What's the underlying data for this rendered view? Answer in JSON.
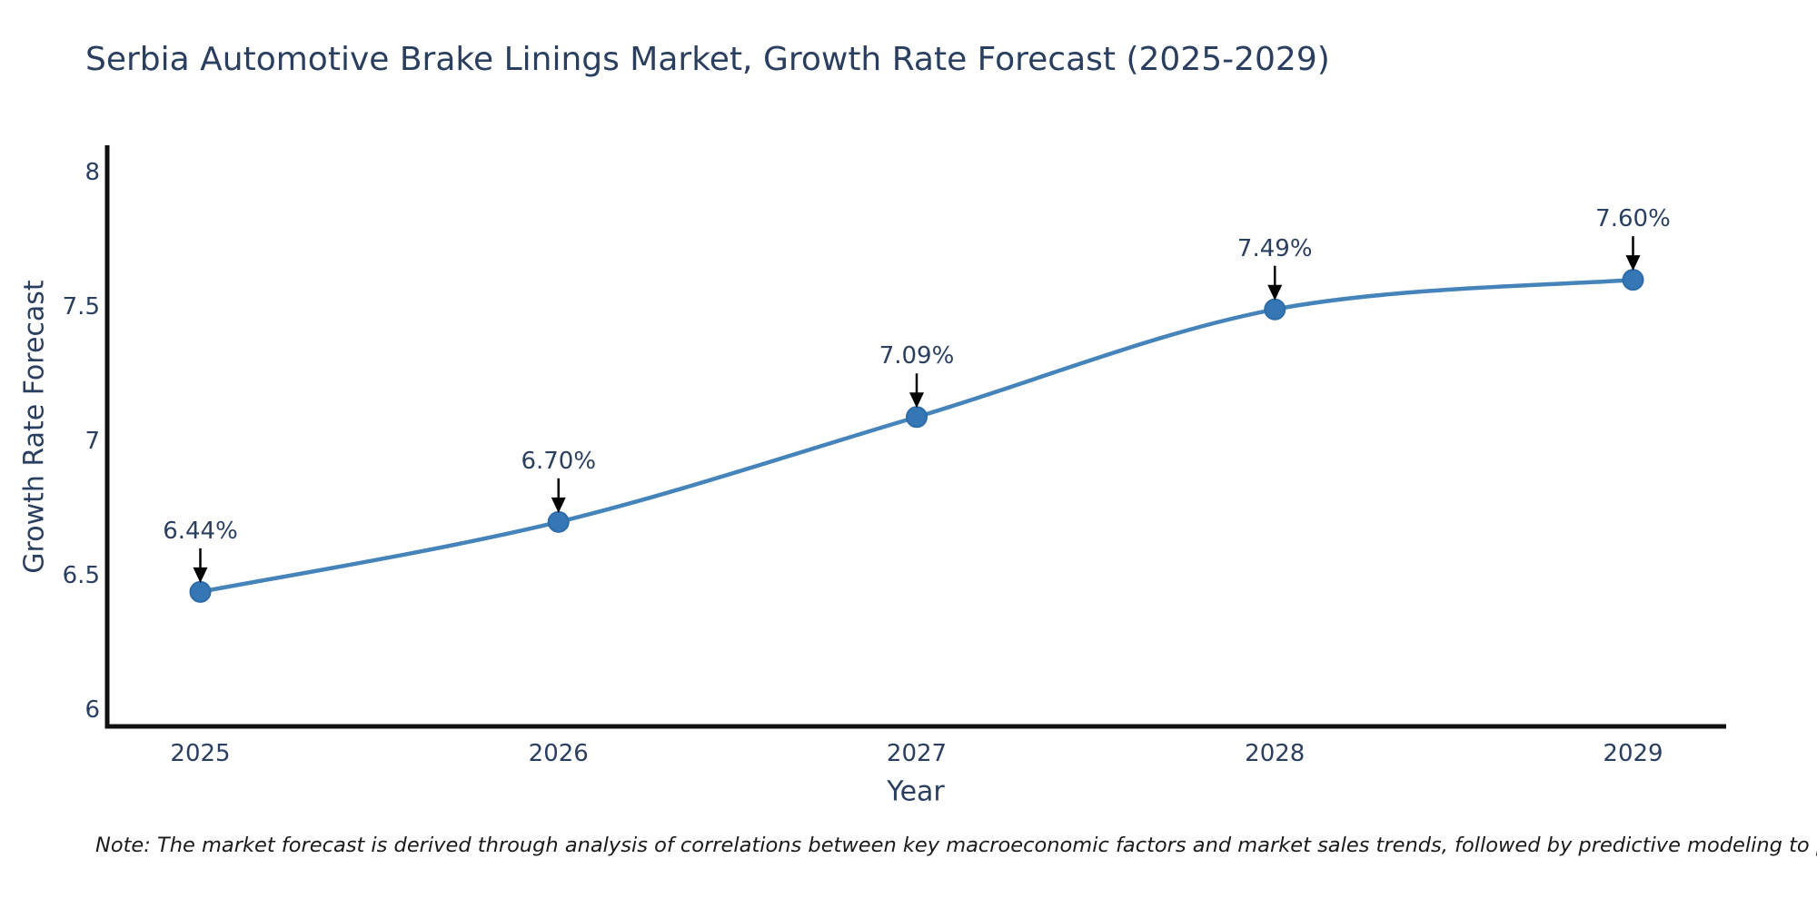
{
  "title": "Serbia Automotive Brake Linings Market, Growth Rate Forecast (2025-2029)",
  "note": "Note: The market forecast is derived through analysis of correlations between key macroeconomic factors and market sales trends, followed by predictive modeling to project future sales",
  "colors": {
    "line": "#4583bb",
    "marker_fill": "#3577b4",
    "marker_edge": "#2d6ca8",
    "axis_line": "#101010",
    "text": "#2a3f5f",
    "annotation_text": "#2a3f5f",
    "arrow": "#000000",
    "note_text": "#1a1a1a",
    "background": "#ffffff"
  },
  "chart_data": {
    "type": "line",
    "title": "Serbia Automotive Brake Linings Market, Growth Rate Forecast (2025-2029)",
    "xlabel": "Year",
    "ylabel": "Growth Rate Forecast",
    "x": [
      2025,
      2026,
      2027,
      2028,
      2029
    ],
    "values": [
      6.44,
      6.7,
      7.09,
      7.49,
      7.6
    ],
    "point_labels": [
      "6.44%",
      "6.70%",
      "7.09%",
      "7.49%",
      "7.60%"
    ],
    "line_shape": "spline",
    "markers": true,
    "grid": false,
    "legend": null,
    "xlim": [
      2024.74,
      2029.26
    ],
    "ylim": [
      5.94,
      8.1
    ],
    "xticks": [
      2025,
      2026,
      2027,
      2028,
      2029
    ],
    "xtick_labels": [
      "2025",
      "2026",
      "2027",
      "2028",
      "2029"
    ],
    "yticks": [
      6,
      6.5,
      7,
      7.5,
      8
    ],
    "ytick_labels": [
      "6",
      "6.5",
      "7",
      "7.5",
      "8"
    ]
  }
}
